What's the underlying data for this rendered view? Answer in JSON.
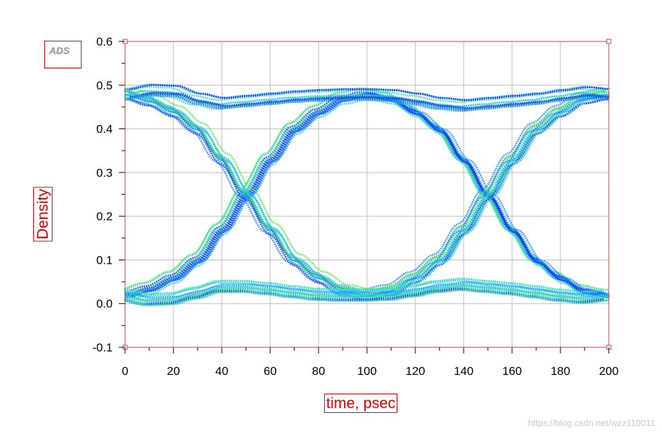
{
  "badge": {
    "text": "ADS"
  },
  "watermark": {
    "text": "https://blog.csdn.net/wzz110011"
  },
  "colors": {
    "axis_title": "#e00000",
    "grid": "#bdbdbd",
    "frame": "#c04040",
    "trace_palette": [
      "#0a2cff",
      "#1a8cff",
      "#29c8e8",
      "#33e2b0",
      "#55ee55"
    ]
  },
  "chart_data": {
    "type": "line",
    "subtype": "eye-diagram",
    "xlabel": "time, psec",
    "ylabel": "Density",
    "xlim": [
      0,
      200
    ],
    "ylim": [
      -0.1,
      0.6
    ],
    "xticks": [
      0,
      20,
      40,
      60,
      80,
      100,
      120,
      140,
      160,
      180,
      200
    ],
    "yticks": [
      -0.1,
      0.0,
      0.1,
      0.2,
      0.3,
      0.4,
      0.5,
      0.6
    ],
    "ytick_labels": [
      "-0.1",
      "0.0",
      "0.1",
      "0.2",
      "0.3",
      "0.4",
      "0.5",
      "0.6"
    ],
    "grid": true,
    "unit_interval_ps": 100,
    "crossing_times_ps": [
      50,
      150
    ],
    "crossing_level": 0.25,
    "high_level_range": [
      0.455,
      0.5
    ],
    "low_level_range": [
      0.0,
      0.045
    ],
    "traces": [
      {
        "x": [
          0,
          10,
          20,
          30,
          40,
          50,
          60,
          70,
          80,
          90,
          100,
          110,
          120,
          130,
          140,
          150,
          160,
          170,
          180,
          190,
          200
        ],
        "y": [
          0.02,
          0.035,
          0.06,
          0.1,
          0.17,
          0.25,
          0.33,
          0.4,
          0.44,
          0.47,
          0.48,
          0.47,
          0.44,
          0.4,
          0.33,
          0.25,
          0.17,
          0.1,
          0.06,
          0.03,
          0.02
        ]
      },
      {
        "x": [
          0,
          10,
          20,
          30,
          40,
          50,
          60,
          70,
          80,
          90,
          100,
          110,
          120,
          130,
          140,
          150,
          160,
          170,
          180,
          190,
          200
        ],
        "y": [
          0.48,
          0.465,
          0.44,
          0.4,
          0.33,
          0.25,
          0.17,
          0.1,
          0.06,
          0.03,
          0.02,
          0.03,
          0.06,
          0.1,
          0.17,
          0.25,
          0.33,
          0.4,
          0.44,
          0.47,
          0.48
        ]
      },
      {
        "x": [
          0,
          10,
          20,
          30,
          40,
          50,
          60,
          70,
          80,
          90,
          100,
          110,
          120,
          130,
          140,
          150,
          160,
          170,
          180,
          190,
          200
        ],
        "y": [
          0.48,
          0.49,
          0.488,
          0.47,
          0.46,
          0.465,
          0.47,
          0.475,
          0.478,
          0.48,
          0.48,
          0.478,
          0.47,
          0.46,
          0.455,
          0.46,
          0.465,
          0.47,
          0.478,
          0.485,
          0.48
        ]
      },
      {
        "x": [
          0,
          10,
          20,
          30,
          40,
          50,
          60,
          70,
          80,
          90,
          100,
          110,
          120,
          130,
          140,
          150,
          160,
          170,
          180,
          190,
          200
        ],
        "y": [
          0.02,
          0.01,
          0.012,
          0.025,
          0.04,
          0.04,
          0.035,
          0.028,
          0.022,
          0.02,
          0.02,
          0.022,
          0.03,
          0.04,
          0.045,
          0.04,
          0.035,
          0.028,
          0.02,
          0.015,
          0.02
        ]
      }
    ]
  }
}
